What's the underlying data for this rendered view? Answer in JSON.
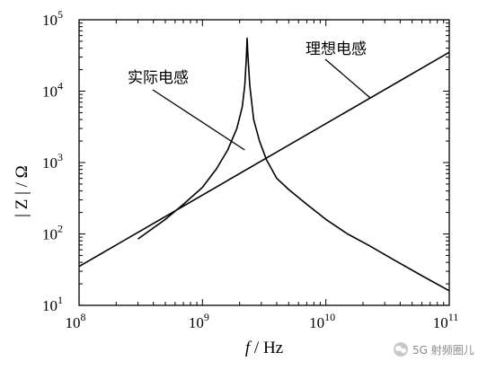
{
  "chart_data": {
    "type": "line",
    "title": "",
    "x_scale": "log",
    "y_scale": "log",
    "xlim": [
      100000000.0,
      100000000000.0
    ],
    "ylim": [
      10,
      100000
    ],
    "xlabel_italic": "f",
    "xlabel_rest": " / Hz",
    "ylabel": "| Z | / Ω",
    "x_ticks": [
      {
        "value": 100000000.0,
        "base": "10",
        "exp": "8"
      },
      {
        "value": 1000000000.0,
        "base": "10",
        "exp": "9"
      },
      {
        "value": 10000000000.0,
        "base": "10",
        "exp": "10"
      },
      {
        "value": 100000000000.0,
        "base": "10",
        "exp": "11"
      }
    ],
    "y_ticks": [
      {
        "value": 10,
        "base": "10",
        "exp": "1"
      },
      {
        "value": 100,
        "base": "10",
        "exp": "2"
      },
      {
        "value": 1000,
        "base": "10",
        "exp": "3"
      },
      {
        "value": 10000,
        "base": "10",
        "exp": "4"
      },
      {
        "value": 100000,
        "base": "10",
        "exp": "5"
      }
    ],
    "grid": false,
    "series": [
      {
        "name": "理想电感",
        "color": "#000000",
        "points": [
          [
            100000000.0,
            35
          ],
          [
            100000000000.0,
            35000
          ]
        ]
      },
      {
        "name": "实际电感",
        "color": "#000000",
        "points": [
          [
            300000000.0,
            85
          ],
          [
            500000000.0,
            160
          ],
          [
            700000000.0,
            260
          ],
          [
            1000000000.0,
            450
          ],
          [
            1300000000.0,
            820
          ],
          [
            1600000000.0,
            1500
          ],
          [
            1900000000.0,
            3000
          ],
          [
            2100000000.0,
            6000
          ],
          [
            2200000000.0,
            12000
          ],
          [
            2270000000.0,
            30000
          ],
          [
            2300000000.0,
            55000
          ],
          [
            2340000000.0,
            30000
          ],
          [
            2420000000.0,
            12000
          ],
          [
            2600000000.0,
            4000
          ],
          [
            2900000000.0,
            2000
          ],
          [
            3300000000.0,
            1100
          ],
          [
            4000000000.0,
            600
          ],
          [
            5000000000.0,
            420
          ],
          [
            7000000000.0,
            260
          ],
          [
            10000000000.0,
            160
          ],
          [
            15000000000.0,
            100
          ],
          [
            22000000000.0,
            70
          ],
          [
            35000000000.0,
            44
          ],
          [
            60000000000.0,
            26
          ],
          [
            100000000000.0,
            16
          ]
        ]
      }
    ],
    "annotations": [
      {
        "text": "实际电感",
        "series": "实际电感",
        "data_point": [
          2200000000.0,
          1500
        ]
      },
      {
        "text": "理想电感",
        "series": "理想电感",
        "data_point": [
          23000000000.0,
          8000
        ]
      }
    ]
  },
  "watermark": {
    "text": "5G 射频圈儿",
    "icon": "wechat-icon"
  }
}
